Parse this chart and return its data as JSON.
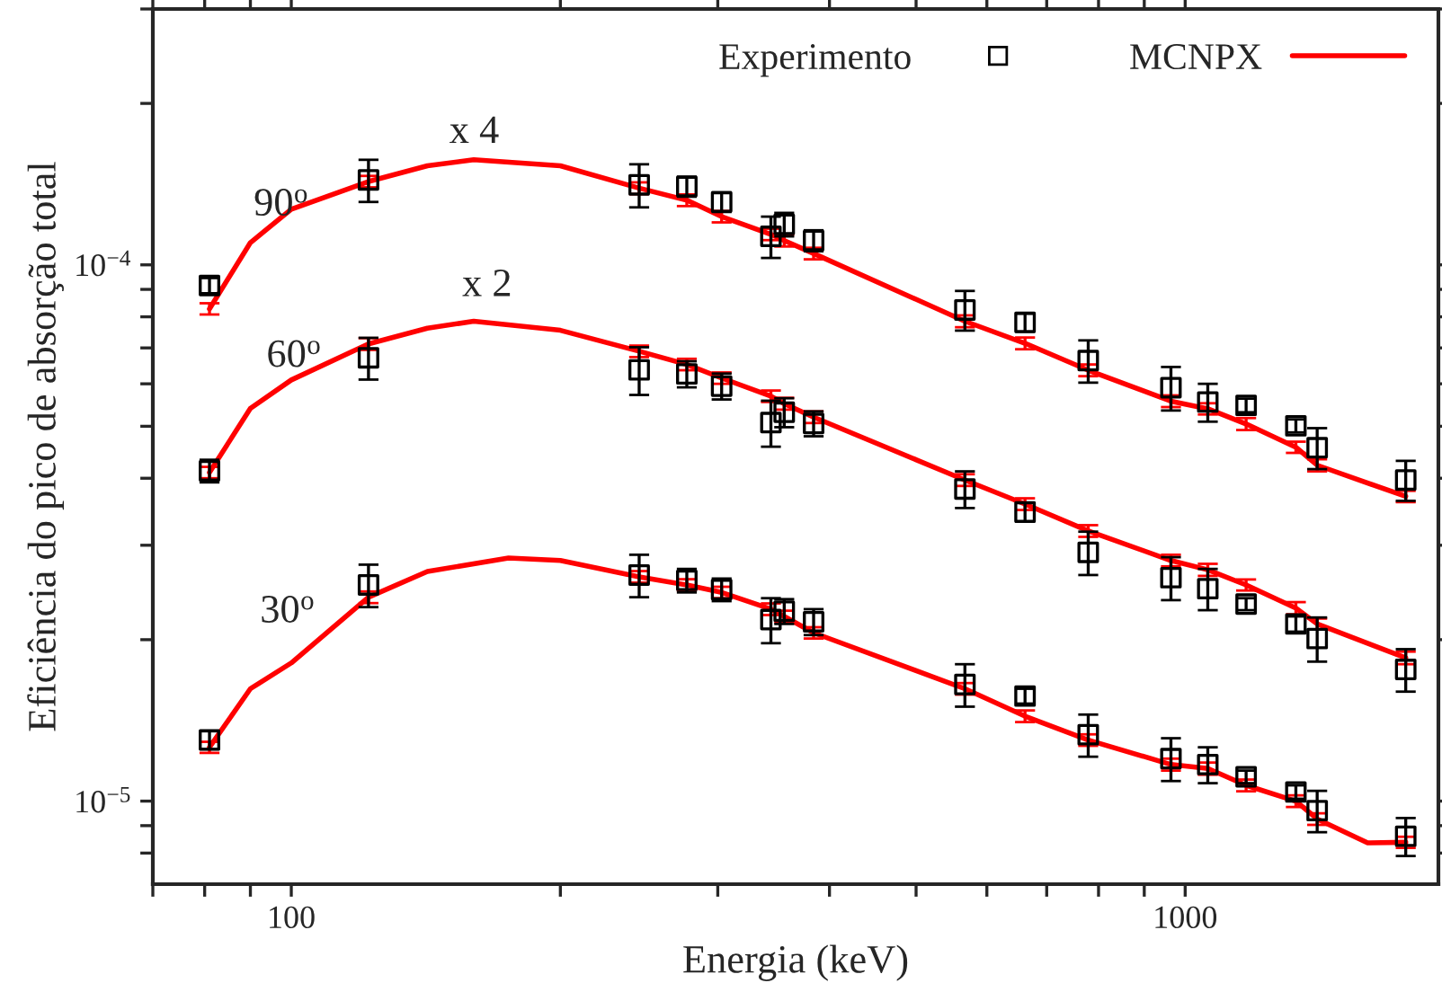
{
  "chart_data": {
    "type": "scatter",
    "xlabel": "Energia (keV)",
    "ylabel": "Eficiência do pico de absorção total",
    "log": "xy",
    "xlim": [
      70,
      1920
    ],
    "ylim": [
      7e-06,
      0.0003
    ],
    "xticks": [
      {
        "value": 70,
        "label": null
      },
      {
        "value": 80,
        "label": null
      },
      {
        "value": 90,
        "label": null
      },
      100,
      {
        "value": 200,
        "label": null
      },
      {
        "value": 300,
        "label": null
      },
      {
        "value": 400,
        "label": null
      },
      {
        "value": 500,
        "label": null
      },
      {
        "value": 600,
        "label": null
      },
      {
        "value": 700,
        "label": null
      },
      {
        "value": 800,
        "label": null
      },
      {
        "value": 900,
        "label": null
      },
      1000
    ],
    "yticks": [
      {
        "value": 8e-06,
        "label": null
      },
      {
        "value": 9e-06,
        "label": null
      },
      {
        "value": 1e-05,
        "label": "10$^{−5}$"
      },
      {
        "value": 2e-05,
        "label": null
      },
      {
        "value": 3e-05,
        "label": null
      },
      {
        "value": 4e-05,
        "label": null
      },
      {
        "value": 5e-05,
        "label": null
      },
      {
        "value": 6e-05,
        "label": null
      },
      {
        "value": 7e-05,
        "label": null
      },
      {
        "value": 8e-05,
        "label": null
      },
      {
        "value": 9e-05,
        "label": null
      },
      {
        "value": 0.0001,
        "label": "10$^{−4}$"
      },
      {
        "value": 0.0002,
        "label": null
      },
      {
        "value": 0.0003,
        "label": null
      }
    ],
    "grid": false,
    "legend": "top right",
    "annotations": [
      "90$^{o}$",
      "x 4",
      "60$^{o}$",
      "x 2",
      "30$^{o}$"
    ],
    "series": [
      {
        "type": "line",
        "name": "MCNPX",
        "color": "#ff0000",
        "marker": "none",
        "x": [
          81,
          90,
          100,
          122,
          142,
          160,
          200,
          245,
          277,
          303,
          344,
          356,
          384,
          567,
          662,
          779,
          964,
          1060,
          1170,
          1330,
          1405,
          1765
        ],
        "values": [
          8.28e-05,
          0.00011,
          0.000127,
          0.000143,
          0.000153,
          0.000157,
          0.000153,
          0.000139,
          0.000132,
          0.000123,
          0.000114,
          0.000111,
          0.000105,
          7.85e-05,
          7.14e-05,
          6.36e-05,
          5.57e-05,
          5.39e-05,
          5.05e-05,
          4.57e-05,
          4.23e-05,
          3.7e-05
        ],
        "errors": [
          2e-06,
          null,
          null,
          3.5e-06,
          null,
          null,
          null,
          3.5e-06,
          3.3e-06,
          3e-06,
          2.8e-06,
          2.8e-06,
          2.6e-06,
          2e-06,
          1.8e-06,
          1.6e-06,
          1.4e-06,
          1.3e-06,
          1.3e-06,
          1.1e-06,
          1.1e-06,
          9e-07
        ]
      },
      {
        "type": "line",
        "color": "#ff0000",
        "marker": "none",
        "x": [
          81,
          90,
          100,
          122,
          142,
          160,
          200,
          245,
          277,
          303,
          344,
          356,
          384,
          567,
          662,
          779,
          964,
          1060,
          1170,
          1330,
          1405,
          1765
        ],
        "values": [
          4.1e-05,
          5.4e-05,
          6.1e-05,
          7.12e-05,
          7.62e-05,
          7.85e-05,
          7.55e-05,
          6.9e-05,
          6.52e-05,
          6.15e-05,
          5.69e-05,
          5.51e-05,
          5.2e-05,
          3.97e-05,
          3.58e-05,
          3.19e-05,
          2.81e-05,
          2.7e-05,
          2.53e-05,
          2.29e-05,
          2.14e-05,
          1.85e-05
        ],
        "errors": [
          1e-06,
          null,
          null,
          1.8e-06,
          null,
          null,
          null,
          1.7e-06,
          1.6e-06,
          1.5e-06,
          1.4e-06,
          1.4e-06,
          1.3e-06,
          1e-06,
          9e-07,
          8e-07,
          7e-07,
          7e-07,
          6e-07,
          6e-07,
          5e-07,
          5e-07
        ]
      },
      {
        "type": "line",
        "color": "#ff0000",
        "marker": "none",
        "x": [
          81,
          90,
          100,
          122,
          142,
          175,
          200,
          245,
          277,
          303,
          344,
          356,
          384,
          567,
          662,
          779,
          964,
          1060,
          1170,
          1330,
          1405,
          1600,
          1765
        ],
        "values": [
          1.26e-05,
          1.62e-05,
          1.81e-05,
          2.4e-05,
          2.68e-05,
          2.84e-05,
          2.81e-05,
          2.62e-05,
          2.53e-05,
          2.45e-05,
          2.28e-05,
          2.21e-05,
          2.06e-05,
          1.62e-05,
          1.44e-05,
          1.3e-05,
          1.17e-05,
          1.15e-05,
          1.07e-05,
          1e-05,
          9.26e-06,
          8.36e-06,
          8.38e-06
        ],
        "errors": [
          3e-07,
          null,
          null,
          6e-07,
          null,
          null,
          null,
          6.5e-07,
          6.3e-07,
          6e-07,
          5.7e-07,
          5.5e-07,
          5e-07,
          4e-07,
          3.6e-07,
          3.2e-07,
          3e-07,
          3e-07,
          2.7e-07,
          2.5e-07,
          2.3e-07,
          null,
          2e-07
        ]
      },
      {
        "name": "Experimento",
        "color": "#000000",
        "marker": "square",
        "x": [
          81,
          122,
          245,
          277,
          303,
          344,
          356,
          384,
          567,
          662,
          779,
          964,
          1060,
          1170,
          1330,
          1405,
          1765
        ],
        "values": [
          9.15e-05,
          0.000144,
          0.000141,
          0.00014,
          0.000131,
          0.000113,
          0.000119,
          0.000111,
          8.24e-05,
          7.81e-05,
          6.63e-05,
          5.9e-05,
          5.55e-05,
          5.47e-05,
          5.01e-05,
          4.56e-05,
          3.97e-05
        ],
        "errors": [
          3e-06,
          1.3e-05,
          1.3e-05,
          6e-06,
          5.5e-06,
          1e-05,
          6e-06,
          5e-06,
          7e-06,
          3e-06,
          6e-06,
          5.5e-06,
          4.5e-06,
          1.6e-06,
          1.4e-06,
          4e-06,
          3.4e-06
        ]
      },
      {
        "color": "#000000",
        "marker": "square",
        "x": [
          81,
          122,
          245,
          277,
          303,
          344,
          356,
          384,
          567,
          662,
          779,
          964,
          1060,
          1170,
          1330,
          1405,
          1765
        ],
        "values": [
          4.13e-05,
          6.71e-05,
          6.37e-05,
          6.26e-05,
          5.94e-05,
          5.08e-05,
          5.31e-05,
          5.06e-05,
          3.82e-05,
          3.46e-05,
          2.91e-05,
          2.61e-05,
          2.49e-05,
          2.33e-05,
          2.14e-05,
          2.01e-05,
          1.76e-05
        ],
        "errors": [
          2e-06,
          6e-06,
          6.5e-06,
          3.5e-06,
          3.3e-06,
          5e-06,
          3.3e-06,
          2.7e-06,
          3e-06,
          1.4e-06,
          2.7e-06,
          2.4e-06,
          2.2e-06,
          6e-07,
          7e-07,
          1.9e-06,
          1.6e-06
        ]
      },
      {
        "color": "#000000",
        "marker": "square",
        "x": [
          81,
          122,
          245,
          277,
          303,
          344,
          356,
          384,
          567,
          662,
          779,
          964,
          1060,
          1170,
          1330,
          1405,
          1765
        ],
        "values": [
          1.3e-05,
          2.53e-05,
          2.64e-05,
          2.58e-05,
          2.48e-05,
          2.18e-05,
          2.26e-05,
          2.16e-05,
          1.65e-05,
          1.57e-05,
          1.33e-05,
          1.2e-05,
          1.17e-05,
          1.11e-05,
          1.04e-05,
          9.6e-06,
          8.6e-06
        ],
        "errors": [
          5e-07,
          2.3e-06,
          2.4e-06,
          1.3e-06,
          1.2e-06,
          2.1e-06,
          1.2e-06,
          1.2e-06,
          1.5e-06,
          5e-07,
          1.2e-06,
          1.1e-06,
          9e-07,
          3e-07,
          3e-07,
          8.5e-07,
          7e-07
        ]
      }
    ]
  }
}
